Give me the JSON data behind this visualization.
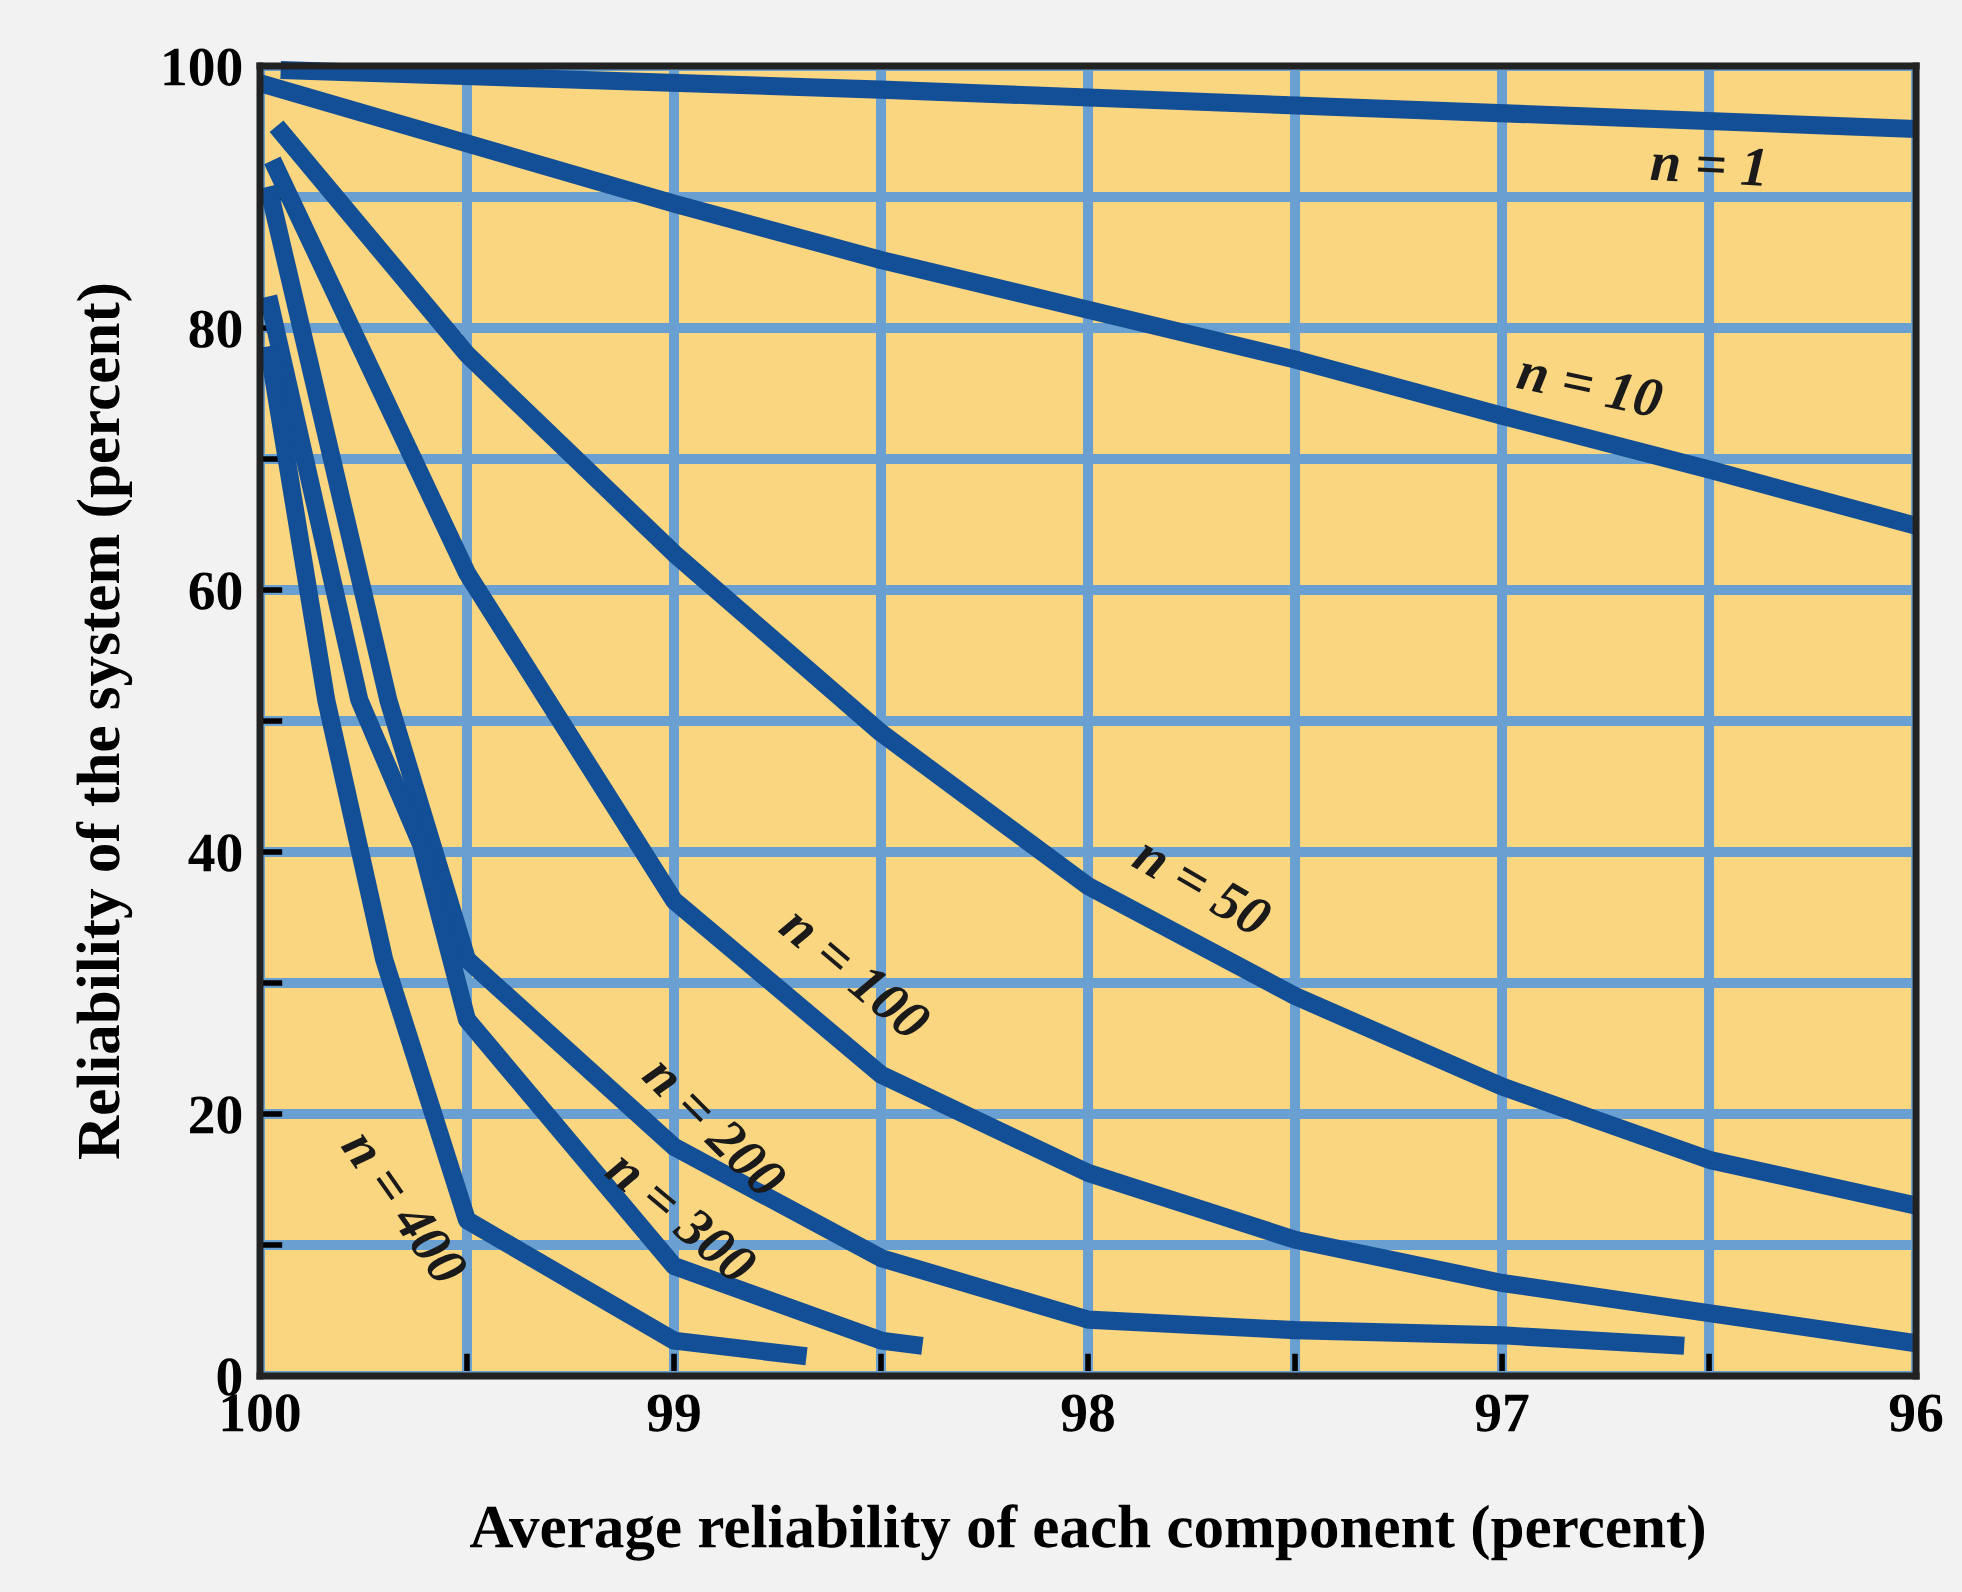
{
  "chart_data": {
    "type": "line",
    "xlabel": "Average reliability of each component (percent)",
    "ylabel": "Reliability of the system (percent)",
    "xlim": [
      100,
      96
    ],
    "ylim": [
      0,
      100
    ],
    "xticks": [
      100,
      {
        "value": 99.5,
        "label": null
      },
      99,
      {
        "value": 98.5,
        "label": null
      },
      98,
      {
        "value": 97.5,
        "label": null
      },
      97,
      {
        "value": 96.5,
        "label": null
      },
      96
    ],
    "yticks": [
      0,
      {
        "value": 10,
        "label": null
      },
      20,
      {
        "value": 30,
        "label": null
      },
      40,
      {
        "value": 50,
        "label": null
      },
      60,
      {
        "value": 70,
        "label": null
      },
      80,
      {
        "value": 90,
        "label": null
      },
      100
    ],
    "grid": true,
    "legend": false,
    "marker": "none",
    "line_style": "solid",
    "series": [
      {
        "name": "n = 1",
        "color": "#134f96",
        "x": [
          99.95,
          98.5,
          96
        ],
        "values": [
          99.7,
          98.2,
          95.2
        ]
      },
      {
        "name": "n = 10",
        "color": "#134f96",
        "x": [
          100,
          99,
          98.5,
          98,
          97.5,
          97,
          96.5,
          96
        ],
        "values": [
          98.7,
          89.5,
          85.2,
          81.4,
          77.6,
          73.3,
          69.2,
          64.9
        ]
      },
      {
        "name": "n = 50",
        "color": "#134f96",
        "x": [
          99.96,
          99.5,
          99,
          98.5,
          98,
          97.5,
          97,
          96.5,
          96
        ],
        "values": [
          95.4,
          78,
          62.8,
          49.1,
          37.4,
          29,
          22.1,
          16.5,
          13
        ]
      },
      {
        "name": "n = 100",
        "color": "#134f96",
        "x": [
          99.97,
          99.5,
          99,
          98.5,
          98,
          97.5,
          97,
          96.5,
          96
        ],
        "values": [
          92.8,
          61.3,
          36.3,
          23,
          15.5,
          10.4,
          7.1,
          4.8,
          2.5
        ]
      },
      {
        "name": "n = 200",
        "color": "#134f96",
        "x": [
          99.98,
          99.69,
          99.5,
          99,
          98.5,
          98,
          97.5,
          97,
          96.56
        ],
        "values": [
          90.8,
          51.6,
          31.8,
          17.5,
          9,
          4.3,
          3.5,
          3.1,
          2.3
        ]
      },
      {
        "name": "n = 300",
        "color": "#134f96",
        "x": [
          99.98,
          99.76,
          99.61,
          99.5,
          99,
          98.5,
          98.4
        ],
        "values": [
          82.4,
          51.6,
          40.5,
          27.2,
          8.4,
          2.7,
          2.3
        ]
      },
      {
        "name": "n = 400",
        "color": "#134f96",
        "x": [
          99.98,
          99.84,
          99.7,
          99.5,
          99,
          98.68
        ],
        "values": [
          78.6,
          51.6,
          31.8,
          11.9,
          2.7,
          1.5
        ]
      }
    ]
  }
}
